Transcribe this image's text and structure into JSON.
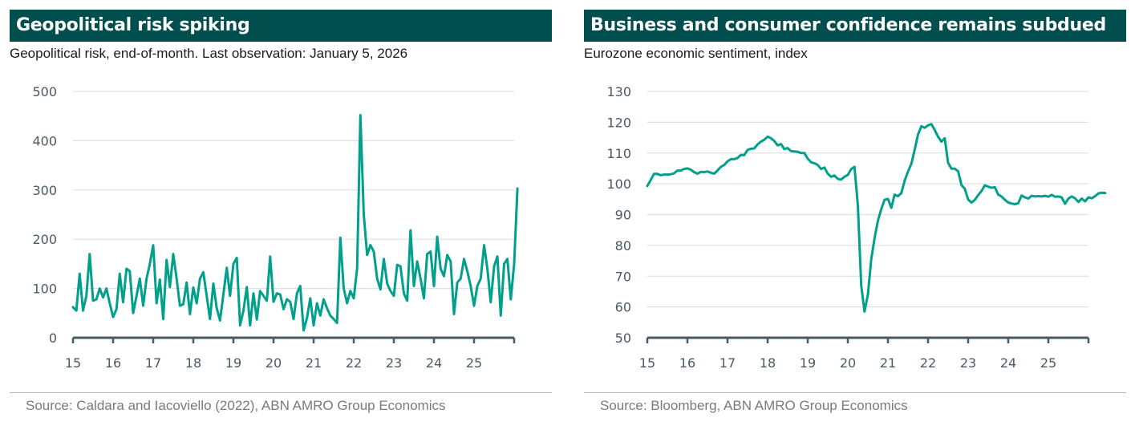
{
  "colors": {
    "title_bg": "#004f4e",
    "line": "#00a08a",
    "axis": "#4a5a63",
    "grid": "#e0e0e0"
  },
  "chart_data": [
    {
      "type": "line",
      "title": "Geopolitical risk spiking",
      "subtitle": "Geopolitical risk, end-of-month. Last observation: January 5, 2026",
      "source": "Source: Caldara and Iacoviello (2022), ABN AMRO Group Economics",
      "xlabel": "",
      "ylabel": "",
      "ylim": [
        0,
        500
      ],
      "yticks": [
        "0",
        "100",
        "200",
        "300",
        "400",
        "500"
      ],
      "ytick_values": [
        0,
        100,
        200,
        300,
        400,
        500
      ],
      "xlim": [
        2015,
        2026
      ],
      "xticks": [
        "15",
        "16",
        "17",
        "18",
        "19",
        "20",
        "21",
        "22",
        "23",
        "24",
        "25"
      ],
      "xtick_values": [
        2015,
        2016,
        2017,
        2018,
        2019,
        2020,
        2021,
        2022,
        2023,
        2024,
        2025
      ],
      "grid": true,
      "series": [
        {
          "name": "Geopolitical risk",
          "x_start": 2015.0,
          "x_step": 0.08333,
          "values": [
            62,
            55,
            130,
            55,
            85,
            170,
            75,
            78,
            100,
            82,
            100,
            70,
            42,
            58,
            130,
            72,
            140,
            135,
            50,
            85,
            120,
            65,
            120,
            150,
            188,
            70,
            118,
            38,
            158,
            103,
            170,
            120,
            65,
            68,
            112,
            48,
            102,
            70,
            120,
            133,
            85,
            38,
            110,
            60,
            35,
            88,
            142,
            85,
            150,
            162,
            25,
            55,
            103,
            25,
            90,
            37,
            95,
            85,
            75,
            165,
            73,
            90,
            88,
            58,
            78,
            73,
            38,
            90,
            105,
            15,
            40,
            80,
            25,
            70,
            45,
            78,
            60,
            45,
            38,
            30,
            203,
            100,
            70,
            95,
            80,
            140,
            452,
            250,
            168,
            188,
            175,
            120,
            98,
            160,
            110,
            95,
            85,
            148,
            145,
            90,
            75,
            218,
            105,
            155,
            120,
            80,
            170,
            175,
            105,
            205,
            140,
            125,
            168,
            155,
            48,
            112,
            120,
            160,
            135,
            105,
            65,
            105,
            120,
            188,
            140,
            72,
            145,
            165,
            45,
            150,
            160,
            78,
            150,
            303
          ]
        }
      ]
    },
    {
      "type": "line",
      "title": "Business and consumer confidence remains subdued",
      "subtitle": "Eurozone economic sentiment, index",
      "source": "Source: Bloomberg, ABN AMRO Group Economics",
      "xlabel": "",
      "ylabel": "",
      "ylim": [
        50,
        130
      ],
      "yticks": [
        "50",
        "60",
        "70",
        "80",
        "90",
        "100",
        "110",
        "120",
        "130"
      ],
      "ytick_values": [
        50,
        60,
        70,
        80,
        90,
        100,
        110,
        120,
        130
      ],
      "xlim": [
        2015,
        2026
      ],
      "xticks": [
        "15",
        "16",
        "17",
        "18",
        "19",
        "20",
        "21",
        "22",
        "23",
        "24",
        "25"
      ],
      "xtick_values": [
        2015,
        2016,
        2017,
        2018,
        2019,
        2020,
        2021,
        2022,
        2023,
        2024,
        2025
      ],
      "grid": true,
      "series": [
        {
          "name": "Economic sentiment",
          "x_start": 2015.0,
          "x_step": 0.08333,
          "values": [
            99.3,
            101.2,
            103.2,
            103.2,
            102.8,
            103.0,
            103.0,
            103.1,
            103.4,
            104.3,
            104.3,
            104.8,
            105.0,
            104.6,
            103.8,
            103.3,
            103.9,
            103.8,
            104.0,
            103.6,
            103.3,
            104.3,
            105.5,
            106.1,
            107.3,
            108.0,
            108.0,
            108.4,
            109.4,
            109.3,
            111.0,
            111.4,
            111.5,
            112.8,
            113.7,
            114.3,
            115.3,
            114.8,
            113.9,
            112.5,
            112.9,
            111.3,
            111.6,
            110.6,
            110.5,
            110.4,
            110.0,
            110.0,
            108.2,
            107.0,
            106.7,
            106.1,
            104.8,
            105.3,
            103.3,
            102.3,
            102.7,
            101.6,
            101.4,
            102.3,
            102.9,
            104.8,
            105.5,
            93.0,
            67.0,
            58.5,
            64.0,
            75.5,
            82.3,
            88.0,
            91.8,
            94.8,
            95.1,
            92.2,
            96.5,
            96.0,
            97.0,
            101.0,
            104.0,
            106.5,
            111.0,
            116.0,
            118.7,
            118.2,
            119.0,
            119.4,
            117.5,
            115.3,
            113.7,
            114.8,
            106.8,
            104.9,
            104.9,
            104.1,
            99.6,
            98.4,
            94.9,
            93.9,
            94.8,
            96.3,
            97.7,
            99.5,
            99.1,
            98.7,
            98.9,
            96.5,
            95.9,
            94.8,
            93.9,
            93.6,
            93.4,
            93.7,
            96.2,
            95.6,
            95.2,
            96.1,
            95.9,
            96.0,
            95.9,
            96.1,
            95.8,
            96.4,
            95.8,
            95.9,
            95.6,
            93.5,
            95.2,
            95.9,
            95.3,
            94.1,
            95.2,
            94.3,
            95.6,
            95.3,
            96.0,
            96.9,
            97.1,
            97.0
          ]
        }
      ]
    }
  ]
}
